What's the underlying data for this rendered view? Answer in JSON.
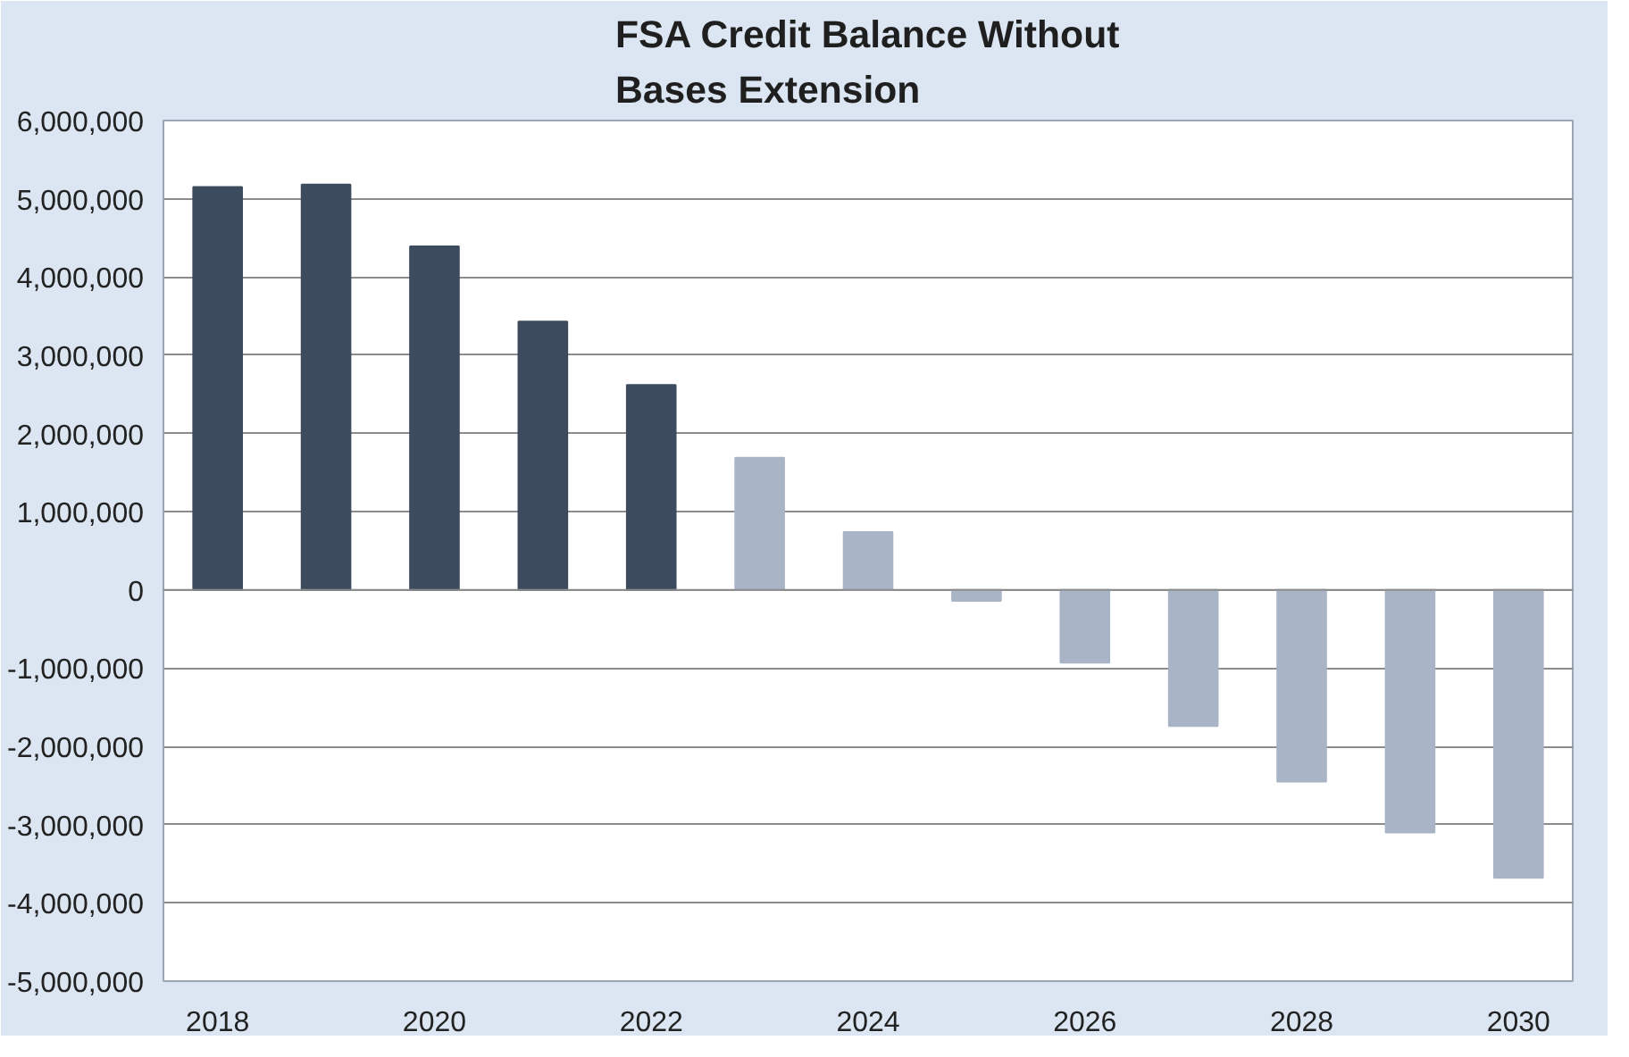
{
  "chart_data": {
    "type": "bar",
    "title": "FSA Credit Balance Without\nBases Extension",
    "categories": [
      "2018",
      null,
      "2020",
      null,
      "2022",
      null,
      "2024",
      null,
      "2026",
      null,
      "2028",
      null,
      "2030"
    ],
    "values": [
      5150000,
      5180000,
      4390000,
      3430000,
      2620000,
      1690000,
      740000,
      -140000,
      -930000,
      -1740000,
      -2450000,
      -3100000,
      -3680000
    ],
    "colors": [
      "#3d4b5e",
      "#3d4b5e",
      "#3d4b5e",
      "#3d4b5e",
      "#3d4b5e",
      "#a9b4c6",
      "#a9b4c6",
      "#a9b4c6",
      "#a9b4c6",
      "#a9b4c6",
      "#a9b4c6",
      "#a9b4c6",
      "#a9b4c6"
    ],
    "ylim": [
      -5000000,
      6000000
    ],
    "yticks": [
      {
        "value": -5000000,
        "label": "-5,000,000"
      },
      {
        "value": -4000000,
        "label": "-4,000,000"
      },
      {
        "value": -3000000,
        "label": "-3,000,000"
      },
      {
        "value": -2000000,
        "label": "-2,000,000"
      },
      {
        "value": -1000000,
        "label": "-1,000,000"
      },
      {
        "value": 0,
        "label": "0"
      },
      {
        "value": 1000000,
        "label": "1,000,000"
      },
      {
        "value": 2000000,
        "label": "2,000,000"
      },
      {
        "value": 3000000,
        "label": "3,000,000"
      },
      {
        "value": 4000000,
        "label": "4,000,000"
      },
      {
        "value": 5000000,
        "label": "5,000,000"
      },
      {
        "value": 6000000,
        "label": "6,000,000"
      }
    ],
    "grid": "y"
  }
}
